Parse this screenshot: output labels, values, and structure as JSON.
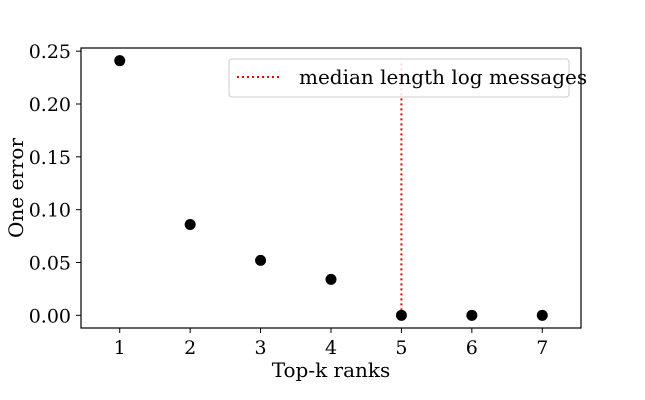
{
  "chart_data": {
    "type": "scatter",
    "xlabel": "Top-k ranks",
    "ylabel": "One error",
    "x": [
      1,
      2,
      3,
      4,
      5,
      6,
      7
    ],
    "y": [
      0.241,
      0.086,
      0.052,
      0.034,
      0.0,
      0.0,
      0.0
    ],
    "xticks": [
      1,
      2,
      3,
      4,
      5,
      6,
      7
    ],
    "yticks": [
      0.0,
      0.05,
      0.1,
      0.15,
      0.2,
      0.25
    ],
    "ytick_labels": [
      "0.00",
      "0.05",
      "0.10",
      "0.15",
      "0.20",
      "0.25"
    ],
    "xlim": [
      0.45,
      7.55
    ],
    "ylim": [
      -0.012,
      0.253
    ],
    "marker_color": "#000000",
    "grid": false,
    "vline": {
      "x": 5,
      "y_range": [
        0.0,
        0.24
      ],
      "style": "dotted",
      "color": "#e00000",
      "label": "median length log messages"
    },
    "legend": {
      "position": "top-right",
      "entries": [
        "median length log messages"
      ]
    }
  }
}
